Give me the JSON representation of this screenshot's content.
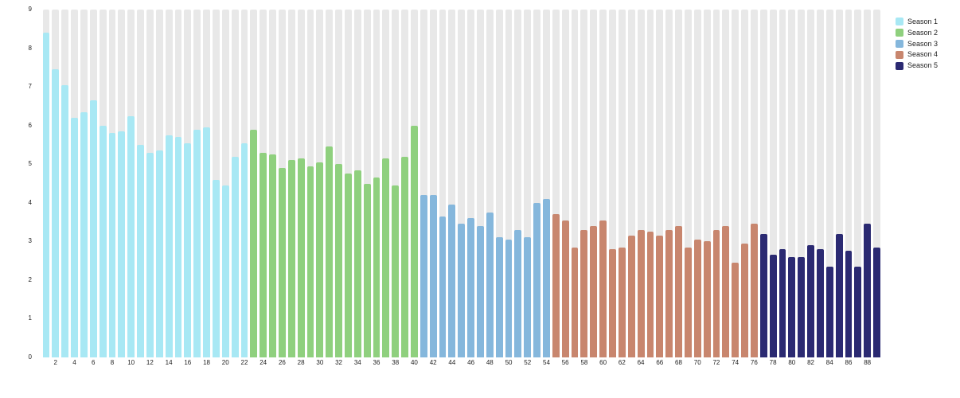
{
  "chart_data": {
    "type": "bar",
    "title": "",
    "xlabel": "",
    "ylabel": "",
    "ylim": [
      0,
      9
    ],
    "yticks": [
      0,
      1,
      2,
      3,
      4,
      5,
      6,
      7,
      8,
      9
    ],
    "xticks": [
      2,
      4,
      6,
      8,
      10,
      12,
      14,
      16,
      18,
      20,
      22,
      24,
      26,
      28,
      30,
      32,
      34,
      36,
      38,
      40,
      42,
      44,
      46,
      48,
      50,
      52,
      54,
      56,
      58,
      60,
      62,
      64,
      66,
      68,
      70,
      72,
      74,
      76,
      78,
      80,
      82,
      84,
      86,
      88
    ],
    "x_label_step": 2,
    "grid": false,
    "legend_position": "top-right",
    "background_stripe_color": "#e8e8e8",
    "series": [
      {
        "name": "Season 1",
        "color": "#a8e8f4",
        "start_episode": 1,
        "values": [
          8.4,
          7.45,
          7.05,
          6.2,
          6.35,
          6.65,
          6.0,
          5.8,
          5.85,
          6.25,
          5.5,
          5.3,
          5.35,
          5.75,
          5.7,
          5.55,
          5.9,
          5.95,
          4.6,
          4.45,
          5.2,
          5.55
        ]
      },
      {
        "name": "Season 2",
        "color": "#8fd07e",
        "start_episode": 23,
        "values": [
          5.9,
          5.3,
          5.25,
          4.9,
          5.1,
          5.15,
          4.95,
          5.05,
          5.45,
          5.0,
          4.75,
          4.85,
          4.5,
          4.65,
          5.15,
          4.45,
          5.2,
          6.0
        ]
      },
      {
        "name": "Season 3",
        "color": "#85b7dc",
        "start_episode": 41,
        "values": [
          4.2,
          4.2,
          3.65,
          3.95,
          3.45,
          3.6,
          3.4,
          3.75,
          3.1,
          3.05,
          3.3,
          3.1,
          4.0,
          4.1
        ]
      },
      {
        "name": "Season 4",
        "color": "#c8866e",
        "start_episode": 55,
        "values": [
          3.7,
          3.55,
          2.85,
          3.3,
          3.4,
          3.55,
          2.8,
          2.85,
          3.15,
          3.3,
          3.25,
          3.15,
          3.3,
          3.4,
          2.85,
          3.05,
          3.0,
          3.3,
          3.4,
          2.45,
          2.95,
          3.45
        ]
      },
      {
        "name": "Season 5",
        "color": "#2b2a72",
        "start_episode": 77,
        "values": [
          3.2,
          2.65,
          2.8,
          2.6,
          2.6,
          2.9,
          2.8,
          2.35,
          3.2,
          2.75,
          2.35,
          3.45,
          2.85
        ]
      }
    ]
  },
  "legend": {
    "items": [
      "Season 1",
      "Season 2",
      "Season 3",
      "Season 4",
      "Season 5"
    ]
  }
}
